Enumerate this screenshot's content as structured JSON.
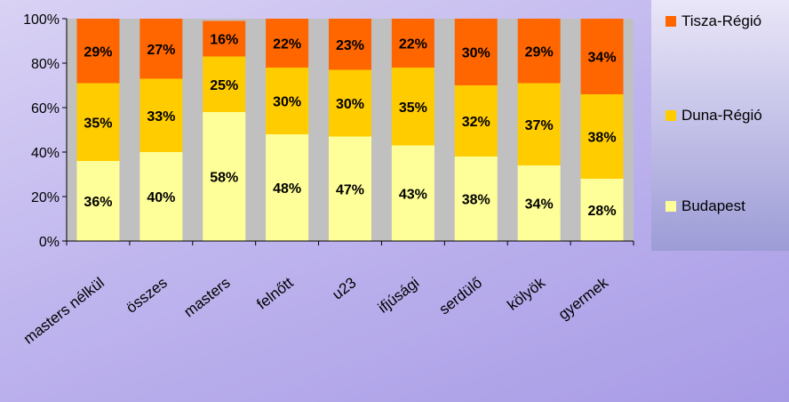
{
  "chart_data": {
    "type": "bar",
    "stacked": true,
    "percent": true,
    "categories": [
      "masters nélkül",
      "összes",
      "masters",
      "felnőtt",
      "u23",
      "ifjúsági",
      "serdülő",
      "kölyök",
      "gyermek"
    ],
    "series": [
      {
        "name": "Budapest",
        "color": "#ffff99",
        "values": [
          36,
          40,
          58,
          48,
          47,
          43,
          38,
          34,
          28
        ]
      },
      {
        "name": "Duna-Régió",
        "color": "#ffcc00",
        "values": [
          35,
          33,
          25,
          30,
          30,
          35,
          32,
          37,
          38
        ]
      },
      {
        "name": "Tisza-Régió",
        "color": "#ff6600",
        "values": [
          29,
          27,
          16,
          22,
          23,
          22,
          30,
          29,
          34
        ]
      }
    ],
    "data_labels": [
      [
        "36%",
        "40%",
        "58%",
        "48%",
        "47%",
        "43%",
        "38%",
        "34%",
        "28%"
      ],
      [
        "35%",
        "33%",
        "25%",
        "30%",
        "30%",
        "35%",
        "32%",
        "37%",
        "38%"
      ],
      [
        "29%",
        "27%",
        "16%",
        "22%",
        "23%",
        "22%",
        "30%",
        "29%",
        "34%"
      ]
    ],
    "y_ticks": [
      "0%",
      "20%",
      "40%",
      "60%",
      "80%",
      "100%"
    ],
    "ylim": [
      0,
      100
    ],
    "legend_position": "right",
    "legend_order": [
      "Tisza-Régió",
      "Duna-Régió",
      "Budapest"
    ],
    "plot_background": "#c0c0c0"
  }
}
